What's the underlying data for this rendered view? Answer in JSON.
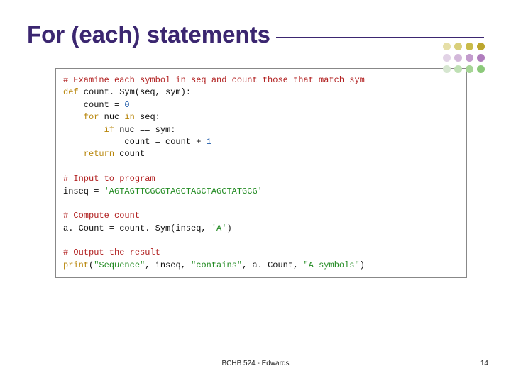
{
  "title": "For (each) statements",
  "dots": {
    "grid": {
      "cols": 4,
      "rows": 3,
      "size": 11,
      "gap": 4
    },
    "colors": [
      "#e6dfa8",
      "#d9cf7a",
      "#c9bb4a",
      "#bca62e",
      "#e2d3e6",
      "#d3b8da",
      "#c39bcd",
      "#b07dbd",
      "#d6e6d0",
      "#bfe0b4",
      "#a6d596",
      "#8cc97a"
    ]
  },
  "code": {
    "fontsize": 12,
    "colors": {
      "keyword": "#b8860b",
      "comment": "#b22222",
      "string": "#228b22",
      "number": "#1e5aa8",
      "text": "#111111",
      "border": "#888888",
      "background": "#ffffff"
    },
    "tokens": [
      [
        {
          "t": "# Examine each symbol in seq and count those that match sym",
          "c": "cm"
        }
      ],
      [
        {
          "t": "def",
          "c": "kw"
        },
        {
          "t": " count. Sym(seq, sym):",
          "c": ""
        }
      ],
      [
        {
          "t": "    count = ",
          "c": ""
        },
        {
          "t": "0",
          "c": "num"
        }
      ],
      [
        {
          "t": "    ",
          "c": ""
        },
        {
          "t": "for",
          "c": "kw"
        },
        {
          "t": " nuc ",
          "c": ""
        },
        {
          "t": "in",
          "c": "kw"
        },
        {
          "t": " seq:",
          "c": ""
        }
      ],
      [
        {
          "t": "        ",
          "c": ""
        },
        {
          "t": "if",
          "c": "kw"
        },
        {
          "t": " nuc == sym:",
          "c": ""
        }
      ],
      [
        {
          "t": "            count = count + ",
          "c": ""
        },
        {
          "t": "1",
          "c": "num"
        }
      ],
      [
        {
          "t": "    ",
          "c": ""
        },
        {
          "t": "return",
          "c": "kw"
        },
        {
          "t": " count",
          "c": ""
        }
      ],
      [
        {
          "t": "",
          "c": ""
        }
      ],
      [
        {
          "t": "# Input to program",
          "c": "cm"
        }
      ],
      [
        {
          "t": "inseq = ",
          "c": ""
        },
        {
          "t": "'AGTAGTTCGCGTAGCTAGCTAGCTATGCG'",
          "c": "str"
        }
      ],
      [
        {
          "t": "",
          "c": ""
        }
      ],
      [
        {
          "t": "# Compute count",
          "c": "cm"
        }
      ],
      [
        {
          "t": "a. Count = count. Sym(inseq, ",
          "c": ""
        },
        {
          "t": "'A'",
          "c": "str"
        },
        {
          "t": ")",
          "c": ""
        }
      ],
      [
        {
          "t": "",
          "c": ""
        }
      ],
      [
        {
          "t": "# Output the result",
          "c": "cm"
        }
      ],
      [
        {
          "t": "print",
          "c": "kw"
        },
        {
          "t": "(",
          "c": ""
        },
        {
          "t": "\"Sequence\"",
          "c": "str"
        },
        {
          "t": ", inseq, ",
          "c": ""
        },
        {
          "t": "\"contains\"",
          "c": "str"
        },
        {
          "t": ", a. Count, ",
          "c": ""
        },
        {
          "t": "\"A symbols\"",
          "c": "str"
        },
        {
          "t": ")",
          "c": ""
        }
      ]
    ]
  },
  "footer": "BCHB 524 - Edwards",
  "page_number": "14",
  "title_color": "#3b2670"
}
